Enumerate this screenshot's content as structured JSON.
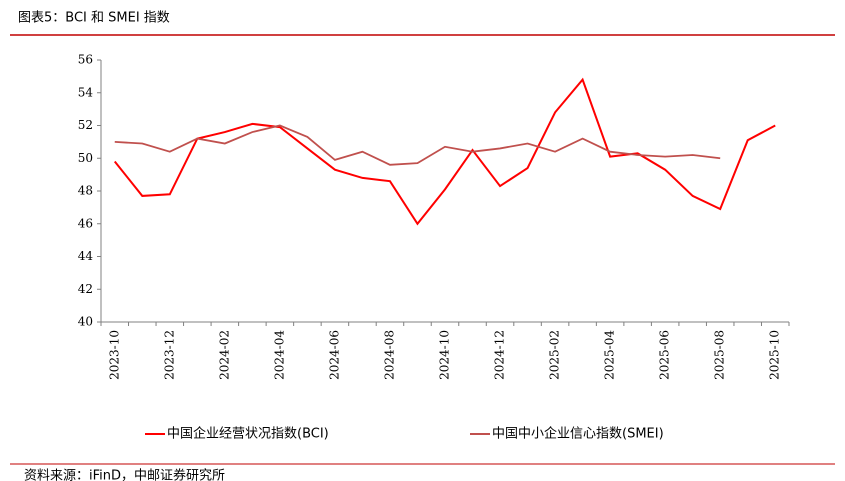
{
  "chart_data": {
    "type": "line",
    "title": "图表5：BCI 和 SMEI 指数",
    "categories": [
      "2023-10",
      null,
      "2023-12",
      null,
      "2024-02",
      null,
      "2024-04",
      null,
      "2024-06",
      null,
      "2024-08",
      null,
      "2024-10",
      null,
      "2024-12",
      null,
      "2025-02",
      null,
      "2025-04",
      null,
      "2025-06",
      null,
      "2025-08",
      null,
      "2025-10"
    ],
    "series": [
      {
        "name": "中国企业经营状况指数(BCI)",
        "color": "#ff0000",
        "values": [
          49.8,
          47.7,
          47.8,
          51.2,
          51.6,
          52.1,
          51.9,
          50.6,
          49.3,
          48.8,
          48.6,
          46.0,
          48.1,
          50.5,
          48.3,
          49.4,
          52.8,
          54.8,
          50.1,
          50.3,
          49.3,
          47.7,
          46.9,
          51.1,
          52.0
        ]
      },
      {
        "name": "中国中小企业信心指数(SMEI)",
        "color": "#c0504d",
        "values": [
          51.0,
          50.9,
          50.4,
          51.2,
          50.9,
          51.6,
          52.0,
          51.3,
          49.9,
          50.4,
          49.6,
          49.7,
          50.7,
          50.4,
          50.6,
          50.9,
          50.4,
          51.2,
          50.4,
          50.2,
          50.1,
          50.2,
          50.0,
          null,
          null
        ]
      }
    ],
    "ylim": [
      40,
      56
    ],
    "yticks": [
      40,
      42,
      44,
      46,
      48,
      50,
      52,
      54,
      56
    ],
    "source": "资料来源：iFinD，中邮证券研究所"
  }
}
